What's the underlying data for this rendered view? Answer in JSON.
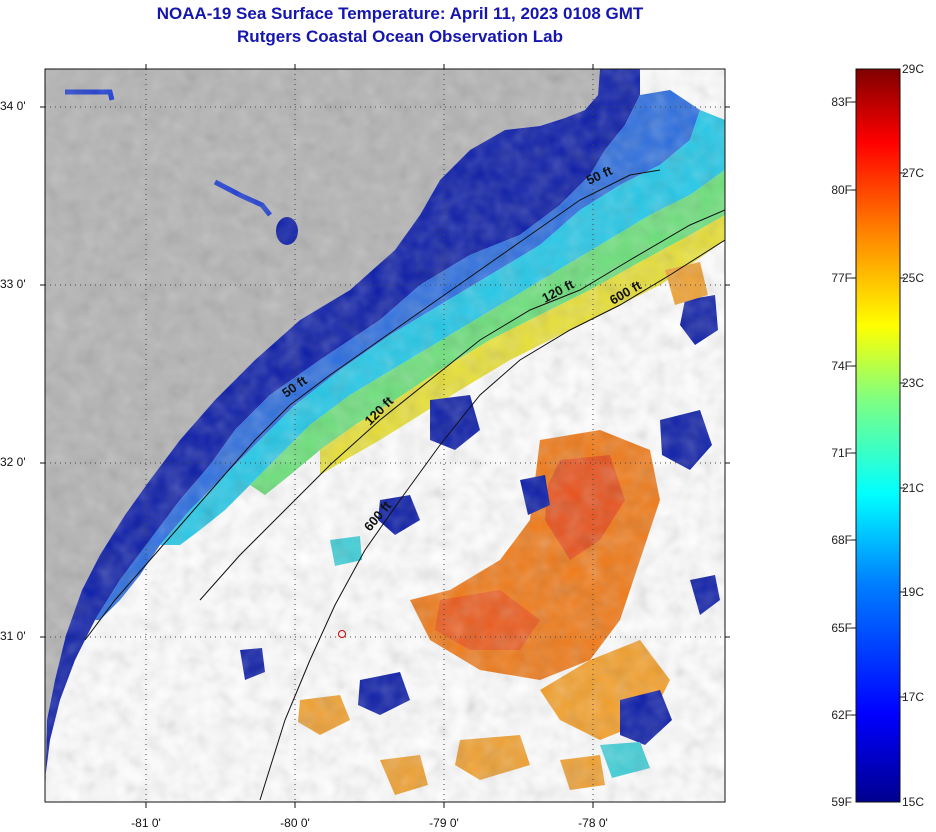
{
  "title_line1": "NOAA-19 Sea Surface Temperature:  April 11, 2023 0108 GMT",
  "title_line2": "Rutgers Coastal Ocean Observation Lab",
  "lat_labels": [
    "34 0'",
    "33 0'",
    "32 0'",
    "31 0'"
  ],
  "lon_labels": [
    "-81 0'",
    "-80 0'",
    "-79 0'",
    "-78 0'"
  ],
  "contours": {
    "c50a": "50 ft",
    "c50b": "50 ft",
    "c120a": "120 ft",
    "c120b": "120 ft",
    "c600a": "600 ft",
    "c600b": "600 ft"
  },
  "colorbar": {
    "fahrenheit": [
      "83F",
      "80F",
      "77F",
      "74F",
      "71F",
      "68F",
      "65F",
      "62F",
      "59F"
    ],
    "celsius": [
      "29C",
      "27C",
      "25C",
      "23C",
      "21C",
      "19C",
      "17C",
      "15C"
    ],
    "range_c": [
      15,
      29
    ],
    "range_f": [
      59,
      84.2
    ]
  },
  "colors": {
    "land": "#b4b4b4",
    "cloud": "#ffffff",
    "title": "#1515b0"
  }
}
